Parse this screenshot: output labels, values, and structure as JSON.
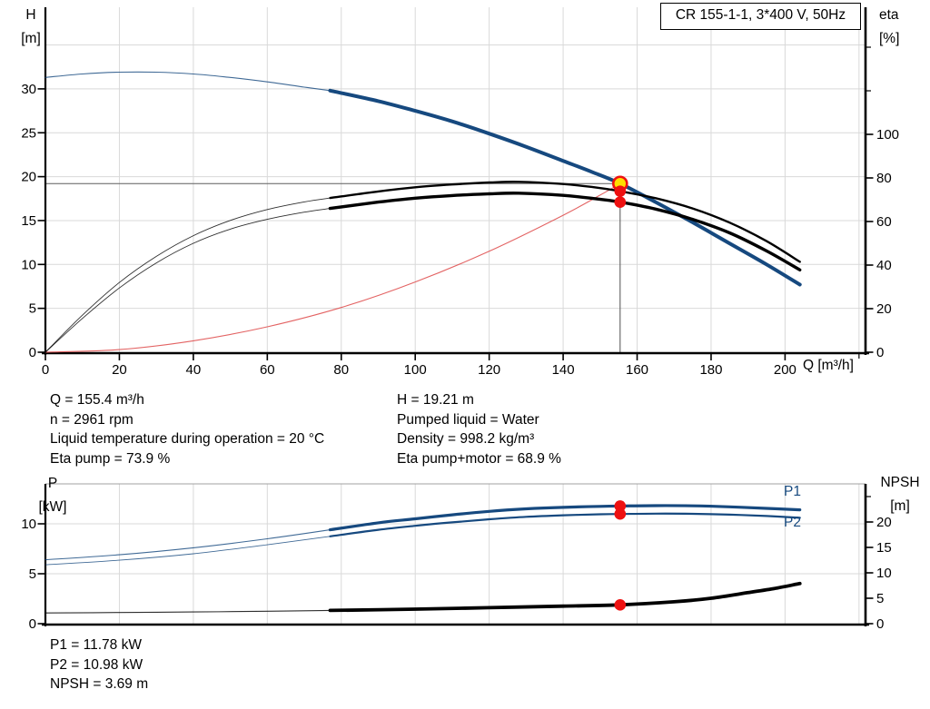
{
  "title_box": "CR 155-1-1, 3*400 V, 50Hz",
  "labels": {
    "h_symbol": "H",
    "h_unit": "[m]",
    "eta_symbol": "eta",
    "eta_unit": "[%]",
    "q_axis": "Q [m³/h]",
    "p_symbol": "P",
    "p_unit": "[kW]",
    "npsh_symbol": "NPSH",
    "npsh_unit": "[m]",
    "p1": "P1",
    "p2": "P2"
  },
  "info": {
    "top_left": [
      "Q = 155.4 m³/h",
      "n = 2961 rpm",
      "Liquid temperature during operation = 20 °C",
      "Eta pump = 73.9 %"
    ],
    "top_right": [
      "H = 19.21 m",
      "Pumped liquid = Water",
      "Density = 998.2 kg/m³",
      "Eta pump+motor = 68.9 %"
    ],
    "bottom": [
      "P1 = 11.78 kW",
      "P2 = 10.98 kW",
      "NPSH = 3.69 m"
    ]
  },
  "colors": {
    "blue": "#16497f",
    "red": "#ee1111",
    "system_red": "#e05252",
    "yellow": "#ffdf00",
    "grid": "#d9d9d9",
    "frame": "#a0a0a0",
    "crosshair": "#5f5f5f",
    "axis": "#000000",
    "text": "#000000"
  },
  "chart_data": [
    {
      "type": "line",
      "name": "QH and efficiency curves",
      "title": "CR 155-1-1, 3*400 V, 50Hz",
      "x_axis": {
        "label": "Q [m³/h]",
        "ticks": [
          0,
          20,
          40,
          60,
          80,
          100,
          120,
          140,
          160,
          180,
          200
        ],
        "minor_ticks": [
          220
        ],
        "range": [
          0,
          221.7
        ],
        "labels_visible": true
      },
      "y_left": {
        "label": "H [m]",
        "ticks": [
          0,
          5,
          10,
          15,
          20,
          25,
          30
        ],
        "minor_gridlines": [
          35
        ],
        "range": [
          0,
          39.3
        ]
      },
      "y_right": {
        "label": "eta [%]",
        "ticks": [
          0,
          20,
          40,
          60,
          80,
          100
        ],
        "minor_ticks": [
          120,
          140
        ],
        "range": [
          0,
          158.3
        ]
      },
      "crosshair": {
        "q": 155.4,
        "value": 19.21
      },
      "series": [
        {
          "name": "system-curve",
          "axis": "left",
          "color": "#e05252",
          "width": 1.1,
          "points": [
            [
              0,
              0
            ],
            [
              20,
              0.3
            ],
            [
              40,
              1.3
            ],
            [
              60,
              2.9
            ],
            [
              80,
              5.1
            ],
            [
              100,
              8.0
            ],
            [
              120,
              11.5
            ],
            [
              140,
              15.6
            ],
            [
              150,
              17.9
            ],
            [
              155.4,
              19.21
            ]
          ]
        },
        {
          "name": "H",
          "axis": "left",
          "color": "#16497f",
          "thin_until": 77,
          "thin_width": 1.1,
          "thick_width": 4,
          "points": [
            [
              0,
              31.3
            ],
            [
              10,
              31.7
            ],
            [
              20,
              31.9
            ],
            [
              30,
              31.9
            ],
            [
              40,
              31.7
            ],
            [
              50,
              31.3
            ],
            [
              60,
              30.8
            ],
            [
              70,
              30.2
            ],
            [
              77,
              29.8
            ],
            [
              90,
              28.6
            ],
            [
              100,
              27.5
            ],
            [
              110,
              26.3
            ],
            [
              120,
              24.9
            ],
            [
              130,
              23.4
            ],
            [
              140,
              21.8
            ],
            [
              148,
              20.5
            ],
            [
              155.4,
              19.21
            ],
            [
              165,
              17.1
            ],
            [
              175,
              14.8
            ],
            [
              185,
              12.4
            ],
            [
              195,
              10.0
            ],
            [
              204,
              7.7
            ]
          ]
        },
        {
          "name": "eta-pump",
          "axis": "right",
          "color": "#000000",
          "thin_until": 77,
          "thin_width": 0.9,
          "thick_width": 2.4,
          "points": [
            [
              0,
              0
            ],
            [
              10,
              17
            ],
            [
              20,
              32
            ],
            [
              30,
              44
            ],
            [
              40,
              53.5
            ],
            [
              50,
              60.5
            ],
            [
              60,
              65.5
            ],
            [
              70,
              69
            ],
            [
              77,
              70.8
            ],
            [
              90,
              73.8
            ],
            [
              100,
              75.7
            ],
            [
              110,
              77
            ],
            [
              120,
              77.9
            ],
            [
              128,
              78.2
            ],
            [
              140,
              77.2
            ],
            [
              148,
              75.8
            ],
            [
              155.4,
              73.9
            ],
            [
              165,
              70.7
            ],
            [
              175,
              66
            ],
            [
              185,
              59.5
            ],
            [
              195,
              51
            ],
            [
              204,
              41.5
            ]
          ]
        },
        {
          "name": "eta-pump-motor",
          "axis": "right",
          "color": "#000000",
          "thin_until": 77,
          "thin_width": 0.9,
          "thick_width": 3.4,
          "points": [
            [
              0,
              0
            ],
            [
              10,
              15.5
            ],
            [
              20,
              29.5
            ],
            [
              30,
              41
            ],
            [
              40,
              50
            ],
            [
              50,
              56.5
            ],
            [
              60,
              61
            ],
            [
              70,
              64.3
            ],
            [
              77,
              66
            ],
            [
              90,
              68.9
            ],
            [
              100,
              70.7
            ],
            [
              110,
              71.9
            ],
            [
              120,
              72.7
            ],
            [
              128,
              73
            ],
            [
              140,
              72
            ],
            [
              148,
              70.6
            ],
            [
              155.4,
              68.9
            ],
            [
              165,
              65.7
            ],
            [
              175,
              61
            ],
            [
              185,
              54.8
            ],
            [
              195,
              46.5
            ],
            [
              204,
              37.8
            ]
          ]
        }
      ],
      "markers": [
        {
          "q": 155.4,
          "value": 19.21,
          "axis": "left",
          "kind": "duty"
        },
        {
          "q": 155.4,
          "value": 73.9,
          "axis": "right",
          "kind": "dot"
        },
        {
          "q": 155.4,
          "value": 68.9,
          "axis": "right",
          "kind": "dot"
        }
      ]
    },
    {
      "type": "line",
      "name": "Power and NPSH curves",
      "x_axis": {
        "ticks": [
          0,
          20,
          40,
          60,
          80,
          100,
          120,
          140,
          160,
          180,
          200
        ],
        "minor_ticks": [
          220
        ],
        "range": [
          0,
          221.7
        ],
        "labels_visible": false
      },
      "y_left": {
        "label": "P [kW]",
        "ticks": [
          0,
          5,
          10
        ],
        "range": [
          0,
          14
        ]
      },
      "y_right": {
        "label": "NPSH [m]",
        "ticks": [
          0,
          5,
          10,
          15,
          20
        ],
        "minor_ticks": [
          25
        ],
        "range": [
          0,
          27.5
        ]
      },
      "series": [
        {
          "name": "P1",
          "axis": "left",
          "color": "#16497f",
          "thin_until": 77,
          "thin_width": 1.1,
          "thick_width": 3.2,
          "points": [
            [
              0,
              6.4
            ],
            [
              20,
              6.9
            ],
            [
              40,
              7.6
            ],
            [
              60,
              8.5
            ],
            [
              77,
              9.4
            ],
            [
              90,
              10.1
            ],
            [
              100,
              10.5
            ],
            [
              110,
              10.9
            ],
            [
              120,
              11.25
            ],
            [
              130,
              11.5
            ],
            [
              140,
              11.65
            ],
            [
              150,
              11.75
            ],
            [
              155.4,
              11.78
            ],
            [
              165,
              11.82
            ],
            [
              175,
              11.8
            ],
            [
              185,
              11.7
            ],
            [
              195,
              11.55
            ],
            [
              204,
              11.4
            ]
          ]
        },
        {
          "name": "P2",
          "axis": "left",
          "color": "#16497f",
          "thin_until": 77,
          "thin_width": 0.9,
          "thick_width": 2.2,
          "points": [
            [
              0,
              5.9
            ],
            [
              20,
              6.35
            ],
            [
              40,
              7.0
            ],
            [
              60,
              7.9
            ],
            [
              77,
              8.75
            ],
            [
              90,
              9.4
            ],
            [
              100,
              9.8
            ],
            [
              110,
              10.15
            ],
            [
              120,
              10.45
            ],
            [
              130,
              10.7
            ],
            [
              140,
              10.85
            ],
            [
              150,
              10.95
            ],
            [
              155.4,
              10.98
            ],
            [
              165,
              11.02
            ],
            [
              175,
              11.0
            ],
            [
              185,
              10.92
            ],
            [
              195,
              10.78
            ],
            [
              204,
              10.6
            ]
          ]
        },
        {
          "name": "NPSH",
          "axis": "right",
          "color": "#000000",
          "thin_until": 77,
          "thin_width": 1.1,
          "thick_width": 3.8,
          "points": [
            [
              0,
              2.1
            ],
            [
              20,
              2.2
            ],
            [
              40,
              2.3
            ],
            [
              60,
              2.45
            ],
            [
              77,
              2.6
            ],
            [
              100,
              2.85
            ],
            [
              120,
              3.15
            ],
            [
              140,
              3.45
            ],
            [
              155.4,
              3.69
            ],
            [
              170,
              4.3
            ],
            [
              180,
              5.0
            ],
            [
              190,
              6.1
            ],
            [
              197,
              6.9
            ],
            [
              204,
              7.9
            ]
          ]
        }
      ],
      "markers": [
        {
          "q": 155.4,
          "value": 11.78,
          "axis": "left",
          "kind": "dot"
        },
        {
          "q": 155.4,
          "value": 10.98,
          "axis": "left",
          "kind": "dot"
        },
        {
          "q": 155.4,
          "value": 3.69,
          "axis": "right",
          "kind": "dot"
        }
      ]
    }
  ]
}
